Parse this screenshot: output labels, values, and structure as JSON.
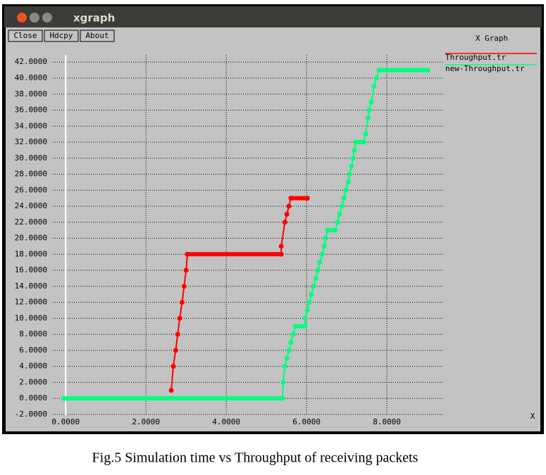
{
  "window": {
    "title": "xgraph",
    "buttons": [
      "Close",
      "Hdcpy",
      "About"
    ]
  },
  "chart_data": {
    "type": "line",
    "title": "X Graph",
    "x_axis_label": "X",
    "xlim": [
      -0.32,
      9.42
    ],
    "ylim": [
      -2.1,
      42.9
    ],
    "grid": true,
    "xticks": [
      {
        "value": 0,
        "label": "0.0000"
      },
      {
        "value": 2,
        "label": "2.0000"
      },
      {
        "value": 4,
        "label": "4.0000"
      },
      {
        "value": 6,
        "label": "6.0000"
      },
      {
        "value": 8,
        "label": "8.0000"
      }
    ],
    "yticks": [
      {
        "value": -2,
        "label": "-2.0000"
      },
      {
        "value": 0,
        "label": "0.0000"
      },
      {
        "value": 2,
        "label": "2.0000"
      },
      {
        "value": 4,
        "label": "4.0000"
      },
      {
        "value": 6,
        "label": "6.0000"
      },
      {
        "value": 8,
        "label": "8.0000"
      },
      {
        "value": 10,
        "label": "10.0000"
      },
      {
        "value": 12,
        "label": "12.0000"
      },
      {
        "value": 14,
        "label": "14.0000"
      },
      {
        "value": 16,
        "label": "16.0000"
      },
      {
        "value": 18,
        "label": "18.0000"
      },
      {
        "value": 20,
        "label": "20.0000"
      },
      {
        "value": 22,
        "label": "22.0000"
      },
      {
        "value": 24,
        "label": "24.0000"
      },
      {
        "value": 26,
        "label": "26.0000"
      },
      {
        "value": 28,
        "label": "28.0000"
      },
      {
        "value": 30,
        "label": "30.0000"
      },
      {
        "value": 32,
        "label": "32.0000"
      },
      {
        "value": 34,
        "label": "34.0000"
      },
      {
        "value": 36,
        "label": "36.0000"
      },
      {
        "value": 38,
        "label": "38.0000"
      },
      {
        "value": 40,
        "label": "40.0000"
      },
      {
        "value": 42,
        "label": "42.0000"
      }
    ],
    "series": [
      {
        "name": "Throughput.tr",
        "color": "#ff0000",
        "x": [
          2.63,
          2.68,
          2.74,
          2.79,
          2.84,
          2.9,
          2.95,
          3.0,
          3.03,
          5.37,
          5.37,
          5.46,
          5.51,
          5.56,
          5.61,
          6.02
        ],
        "values": [
          1,
          4,
          6,
          8,
          10,
          12,
          14,
          16,
          18,
          18,
          19,
          22,
          23,
          24,
          25,
          25
        ]
      },
      {
        "name": "new-Throughput.tr",
        "color": "#00ff80",
        "x": [
          -0.05,
          5.4,
          5.42,
          5.46,
          5.51,
          5.56,
          5.61,
          5.67,
          5.72,
          5.96,
          5.96,
          6.02,
          6.07,
          6.12,
          6.18,
          6.23,
          6.28,
          6.33,
          6.39,
          6.44,
          6.47,
          6.53,
          6.72,
          6.77,
          6.82,
          6.88,
          6.93,
          6.98,
          7.04,
          7.07,
          7.12,
          7.16,
          7.19,
          7.23,
          7.42,
          7.47,
          7.53,
          7.56,
          7.61,
          7.68,
          7.74,
          7.81,
          9.02
        ],
        "values": [
          0,
          0,
          2,
          4,
          5,
          6,
          7,
          8,
          9,
          9,
          10,
          11,
          12,
          13,
          14,
          15,
          16,
          17,
          18,
          19,
          20,
          21,
          21,
          22,
          23,
          24,
          25,
          26,
          27,
          28,
          29,
          30,
          31,
          32,
          32,
          33,
          35,
          36,
          37,
          39,
          40,
          41,
          41
        ]
      }
    ]
  },
  "caption": "Fig.5 Simulation time vs Throughput of receiving packets"
}
